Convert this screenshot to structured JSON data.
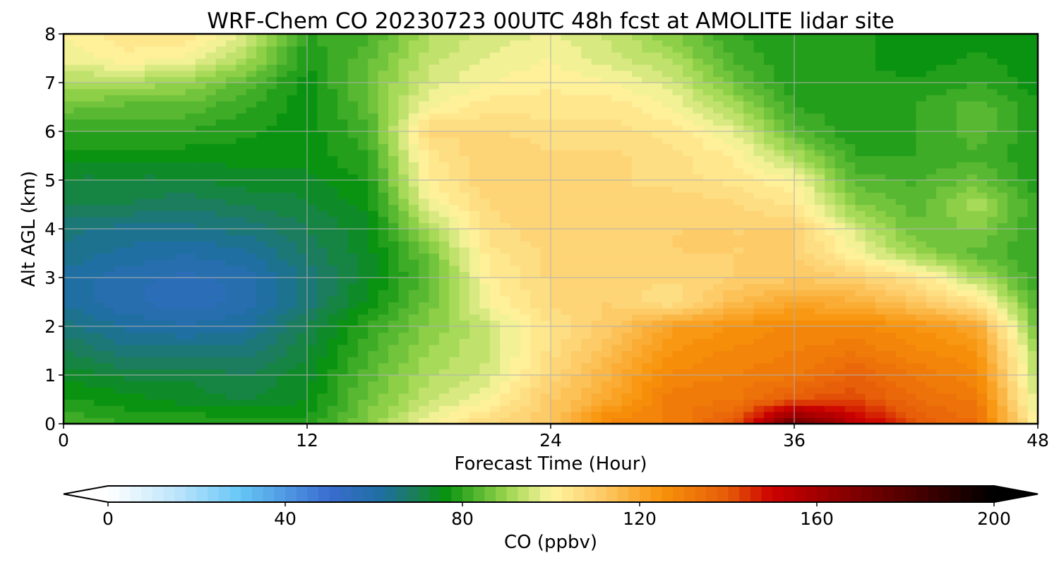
{
  "chart_data": {
    "type": "heatmap",
    "title": "WRF-Chem CO  20230723 00UTC 48h fcst at AMOLITE lidar site",
    "xlabel": "Forecast Time (Hour)",
    "ylabel": "Alt AGL (km)",
    "xlim": [
      0,
      48
    ],
    "ylim": [
      0,
      8
    ],
    "xticks": [
      "0",
      "12",
      "24",
      "36",
      "48"
    ],
    "yticks": [
      "0",
      "1",
      "2",
      "3",
      "4",
      "5",
      "6",
      "7",
      "8"
    ],
    "grid": true,
    "x": [
      0,
      3,
      6,
      9,
      12,
      15,
      18,
      21,
      24,
      27,
      30,
      33,
      36,
      39,
      42,
      45,
      48
    ],
    "y": [
      0,
      0.5,
      1,
      1.5,
      2,
      2.5,
      3,
      3.5,
      4,
      4.5,
      5,
      5.5,
      6,
      6.5,
      7,
      7.5,
      8
    ],
    "z": [
      [
        82,
        80,
        80,
        80,
        78,
        88,
        100,
        108,
        112,
        130,
        130,
        140,
        175,
        155,
        140,
        135,
        100
      ],
      [
        78,
        76,
        74,
        72,
        75,
        86,
        94,
        100,
        112,
        120,
        132,
        132,
        140,
        142,
        135,
        132,
        95
      ],
      [
        74,
        72,
        72,
        70,
        74,
        84,
        92,
        96,
        108,
        118,
        128,
        130,
        132,
        138,
        132,
        128,
        92
      ],
      [
        70,
        66,
        66,
        66,
        72,
        82,
        90,
        95,
        106,
        115,
        125,
        128,
        130,
        132,
        128,
        125,
        90
      ],
      [
        66,
        62,
        60,
        62,
        70,
        80,
        88,
        95,
        105,
        112,
        122,
        125,
        128,
        128,
        125,
        120,
        85
      ],
      [
        62,
        58,
        56,
        58,
        66,
        76,
        86,
        100,
        108,
        110,
        105,
        115,
        120,
        118,
        112,
        105,
        82
      ],
      [
        62,
        58,
        57,
        58,
        66,
        74,
        84,
        102,
        108,
        108,
        108,
        110,
        112,
        110,
        105,
        92,
        80
      ],
      [
        64,
        62,
        60,
        62,
        68,
        74,
        86,
        104,
        108,
        108,
        110,
        110,
        110,
        100,
        90,
        84,
        80
      ],
      [
        66,
        64,
        64,
        66,
        70,
        74,
        92,
        106,
        110,
        108,
        110,
        110,
        110,
        96,
        85,
        88,
        80
      ],
      [
        70,
        70,
        68,
        70,
        72,
        76,
        98,
        108,
        110,
        108,
        110,
        108,
        104,
        88,
        84,
        92,
        80
      ],
      [
        72,
        72,
        72,
        74,
        74,
        78,
        102,
        110,
        108,
        108,
        106,
        104,
        100,
        84,
        82,
        86,
        78
      ],
      [
        76,
        76,
        76,
        76,
        76,
        80,
        104,
        110,
        108,
        108,
        106,
        102,
        92,
        80,
        80,
        82,
        78
      ],
      [
        80,
        80,
        80,
        78,
        76,
        82,
        108,
        108,
        106,
        106,
        104,
        98,
        84,
        78,
        80,
        84,
        78
      ],
      [
        86,
        84,
        84,
        80,
        76,
        84,
        100,
        104,
        104,
        104,
        100,
        92,
        80,
        78,
        80,
        84,
        78
      ],
      [
        92,
        92,
        90,
        84,
        76,
        86,
        96,
        100,
        102,
        100,
        96,
        86,
        78,
        78,
        78,
        80,
        76
      ],
      [
        98,
        102,
        100,
        92,
        78,
        84,
        94,
        98,
        100,
        96,
        92,
        82,
        78,
        78,
        76,
        78,
        76
      ],
      [
        100,
        104,
        104,
        96,
        80,
        82,
        92,
        96,
        98,
        94,
        88,
        80,
        78,
        78,
        76,
        76,
        76
      ]
    ],
    "colorbar": {
      "label": "CO  (ppbv)",
      "ticks": [
        "0",
        "40",
        "80",
        "120",
        "160",
        "200"
      ],
      "min": 0,
      "max": 200,
      "step": 2.5,
      "extend": "both",
      "stops": [
        {
          "v": 0,
          "c": "#ffffff"
        },
        {
          "v": 15,
          "c": "#bfe6fb"
        },
        {
          "v": 30,
          "c": "#66c6f5"
        },
        {
          "v": 50,
          "c": "#3a6cd0"
        },
        {
          "v": 62,
          "c": "#1e6fa0"
        },
        {
          "v": 70,
          "c": "#1a8050"
        },
        {
          "v": 76,
          "c": "#079210"
        },
        {
          "v": 90,
          "c": "#9ad64e"
        },
        {
          "v": 100,
          "c": "#fff5a0"
        },
        {
          "v": 110,
          "c": "#fed070"
        },
        {
          "v": 125,
          "c": "#f7930a"
        },
        {
          "v": 140,
          "c": "#e55a08"
        },
        {
          "v": 150,
          "c": "#cc0000"
        },
        {
          "v": 170,
          "c": "#7a0000"
        },
        {
          "v": 200,
          "c": "#000000"
        }
      ]
    }
  }
}
